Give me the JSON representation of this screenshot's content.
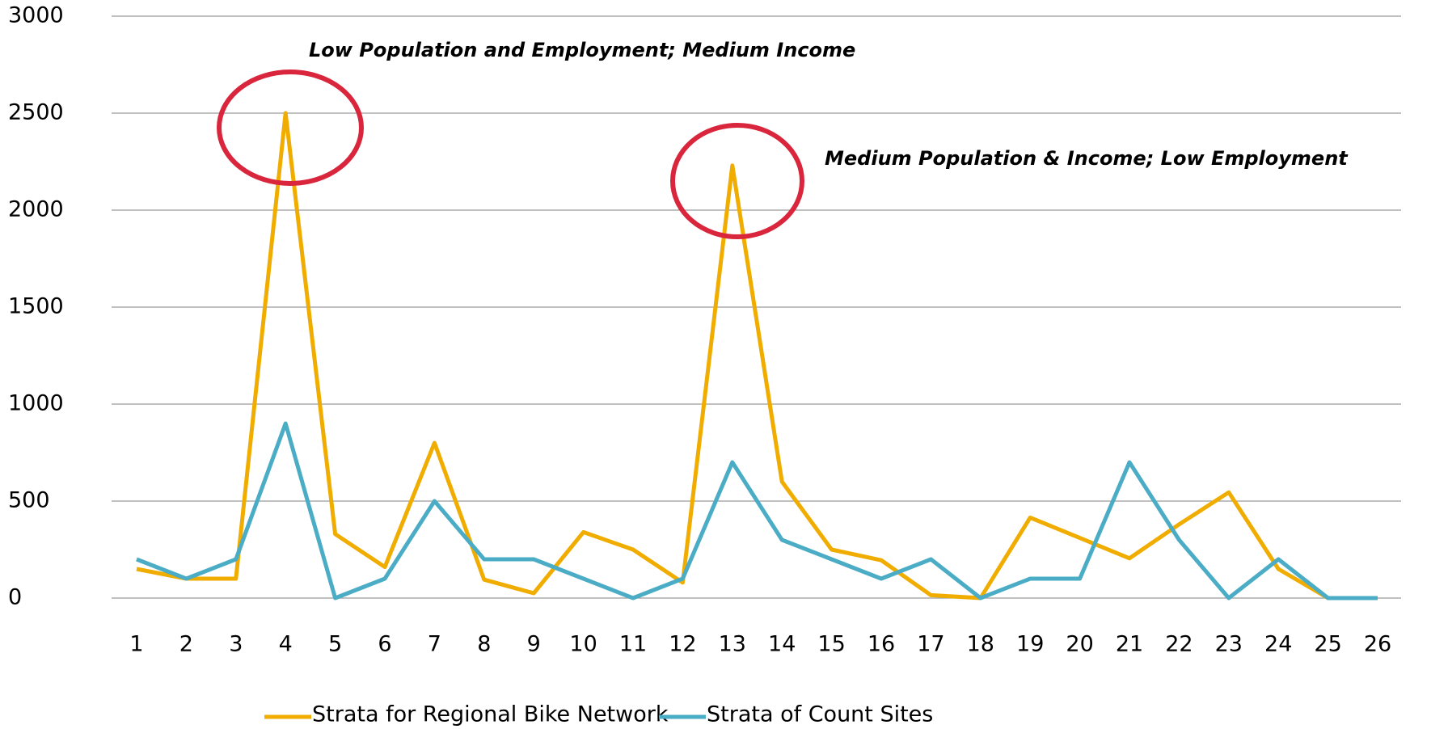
{
  "chart_data": {
    "type": "line",
    "categories": [
      "1",
      "2",
      "3",
      "4",
      "5",
      "6",
      "7",
      "8",
      "9",
      "10",
      "11",
      "12",
      "13",
      "14",
      "15",
      "16",
      "17",
      "18",
      "19",
      "20",
      "21",
      "22",
      "23",
      "24",
      "25",
      "26"
    ],
    "series": [
      {
        "name": "Strata for Regional Bike Network",
        "color": "#f0ad00",
        "values": [
          150,
          100,
          100,
          2500,
          330,
          160,
          800,
          95,
          25,
          340,
          250,
          80,
          2230,
          600,
          250,
          195,
          15,
          0,
          415,
          310,
          205,
          380,
          545,
          150,
          0,
          0
        ]
      },
      {
        "name": "Strata of Count Sites",
        "color": "#4bacc6",
        "values": [
          200,
          100,
          200,
          900,
          0,
          100,
          500,
          200,
          200,
          100,
          0,
          100,
          700,
          300,
          200,
          100,
          200,
          0,
          100,
          100,
          700,
          300,
          0,
          200,
          0,
          0
        ]
      }
    ],
    "ylim": [
      0,
      3000
    ],
    "yticks": [
      0,
      500,
      1000,
      1500,
      2000,
      2500,
      3000
    ],
    "grid": true,
    "legend": "bottom",
    "annotations": [
      "Low Population and Employment;  Medium Income",
      "Medium Population & Income; Low Employment"
    ]
  }
}
